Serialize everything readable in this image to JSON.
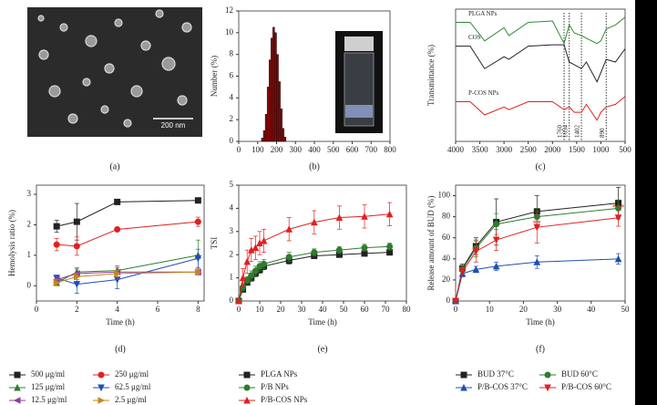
{
  "image_panel": {
    "scale_bar": "200 nm",
    "caption": "(a)"
  },
  "chart_data": [
    {
      "type": "histogram",
      "caption": "(b)",
      "ylabel": "Number (%)",
      "bins": [
        120,
        130,
        140,
        150,
        160,
        170,
        180,
        190,
        200,
        210,
        220,
        230,
        240,
        250
      ],
      "values": [
        0.3,
        1,
        2.5,
        5,
        7.5,
        9.5,
        10.5,
        10,
        8,
        5.5,
        3,
        1.2,
        0.4
      ],
      "color": "#8b0a0a",
      "xlim": [
        0,
        800
      ],
      "xticks": [
        0,
        100,
        200,
        300,
        400,
        500,
        600,
        700,
        800
      ],
      "ylim": [
        0,
        12
      ],
      "yticks": [
        0,
        2,
        4,
        6,
        8,
        10,
        12
      ]
    },
    {
      "type": "line",
      "caption": "(c)",
      "ylabel": "Transmittance (%)",
      "x": [
        4000,
        3700,
        3400,
        3000,
        2900,
        2500,
        2000,
        1760,
        1654,
        1550,
        1402,
        1300,
        1080,
        1000,
        890,
        700,
        500
      ],
      "series": [
        {
          "name": "PLGA NPs",
          "color": "#2e8b2e",
          "values": [
            90,
            90,
            76,
            86,
            80,
            90,
            91,
            74,
            88,
            82,
            80,
            78,
            74,
            76,
            85,
            88,
            94
          ]
        },
        {
          "name": "COS",
          "color": "#222222",
          "values": [
            72,
            72,
            55,
            64,
            62,
            72,
            73,
            73,
            60,
            58,
            55,
            60,
            45,
            52,
            62,
            60,
            70
          ]
        },
        {
          "name": "P-COS NPs",
          "color": "#e02020",
          "values": [
            30,
            30,
            20,
            26,
            24,
            30,
            30,
            24,
            26,
            22,
            22,
            28,
            16,
            22,
            26,
            28,
            34
          ]
        }
      ],
      "vlines": [
        1760,
        1654,
        1402,
        890
      ],
      "xlim": [
        4000,
        500
      ],
      "xticks": [
        4000,
        3500,
        3000,
        2500,
        2000,
        1500,
        1000,
        500
      ],
      "ylim": [
        0,
        100
      ]
    },
    {
      "type": "line",
      "caption": "(d)",
      "xlabel": "Time (h)",
      "ylabel": "Hemolysis ratio (%)",
      "x": [
        1,
        2,
        4,
        8
      ],
      "series": [
        {
          "name": "500 μg/ml",
          "color": "#222222",
          "marker": "square",
          "values": [
            1.95,
            2.1,
            2.75,
            2.8
          ],
          "errors": [
            0.2,
            0.6,
            0.05,
            0.05
          ]
        },
        {
          "name": "250 μg/ml",
          "color": "#e02020",
          "marker": "circle",
          "values": [
            1.35,
            1.3,
            1.85,
            2.1
          ],
          "errors": [
            0.2,
            0.3,
            0.05,
            0.15
          ]
        },
        {
          "name": "125 μg/ml",
          "color": "#2e7d2e",
          "marker": "up",
          "values": [
            0.1,
            0.45,
            0.5,
            1.0
          ],
          "errors": [
            0.1,
            0.1,
            0.1,
            0.5
          ]
        },
        {
          "name": "62.5 μg/ml",
          "color": "#1f4fb0",
          "marker": "down",
          "values": [
            0.25,
            0.05,
            0.2,
            0.9
          ],
          "errors": [
            0.1,
            0.3,
            0.3,
            0.3
          ]
        },
        {
          "name": "12.5 μg/ml",
          "color": "#8a3fa0",
          "marker": "left",
          "values": [
            0.2,
            0.4,
            0.45,
            0.45
          ],
          "errors": [
            0.1,
            0.2,
            0.2,
            0.1
          ]
        },
        {
          "name": "2.5 μg/ml",
          "color": "#c8861a",
          "marker": "right",
          "values": [
            0.1,
            0.3,
            0.4,
            0.45
          ],
          "errors": [
            0.1,
            0.1,
            0.1,
            0.05
          ]
        }
      ],
      "xlim": [
        0,
        8.3
      ],
      "xticks": [
        0,
        2,
        4,
        6,
        8
      ],
      "ylim": [
        -0.5,
        3.3
      ],
      "yticks": [
        0,
        1,
        2,
        3
      ]
    },
    {
      "type": "line",
      "caption": "(e)",
      "xlabel": "Time (h)",
      "ylabel": "TSI",
      "x": [
        0,
        2,
        4,
        6,
        8,
        10,
        12,
        24,
        36,
        48,
        60,
        72
      ],
      "series": [
        {
          "name": "PLGA NPs",
          "color": "#222222",
          "marker": "square",
          "values": [
            0,
            0.5,
            0.8,
            1.0,
            1.2,
            1.35,
            1.5,
            1.75,
            1.95,
            2.0,
            2.05,
            2.1
          ],
          "errors": [
            0,
            0.1,
            0.1,
            0.15,
            0.15,
            0.15,
            0.15,
            0.15,
            0.1,
            0.1,
            0.1,
            0.1
          ]
        },
        {
          "name": "P/B NPs",
          "color": "#2e7d2e",
          "marker": "circle",
          "values": [
            0,
            0.6,
            0.9,
            1.1,
            1.3,
            1.5,
            1.6,
            1.9,
            2.1,
            2.2,
            2.3,
            2.35
          ],
          "errors": [
            0,
            0.15,
            0.15,
            0.2,
            0.2,
            0.2,
            0.2,
            0.2,
            0.15,
            0.15,
            0.15,
            0.15
          ]
        },
        {
          "name": "P/B-COS NPs",
          "color": "#e02020",
          "marker": "up",
          "values": [
            0,
            1.0,
            1.7,
            2.2,
            2.3,
            2.5,
            2.6,
            3.1,
            3.4,
            3.6,
            3.65,
            3.75
          ],
          "errors": [
            0,
            0.4,
            0.5,
            0.5,
            0.5,
            0.5,
            0.5,
            0.5,
            0.5,
            0.5,
            0.5,
            0.5
          ]
        }
      ],
      "xlim": [
        0,
        80
      ],
      "xticks": [
        0,
        10,
        20,
        30,
        40,
        50,
        60,
        70,
        80
      ],
      "ylim": [
        0,
        5
      ],
      "yticks": [
        0,
        1,
        2,
        3,
        4,
        5
      ]
    },
    {
      "type": "line",
      "caption": "(f)",
      "xlabel": "Time (h)",
      "ylabel": "Release amount of BUD (%)",
      "x": [
        0,
        2,
        6,
        12,
        24,
        48
      ],
      "series": [
        {
          "name": "BUD 37°C",
          "color": "#222222",
          "marker": "square",
          "values": [
            0,
            31,
            52,
            75,
            85,
            93
          ],
          "errors": [
            0,
            4,
            8,
            22,
            15,
            15
          ]
        },
        {
          "name": "BUD 60°C",
          "color": "#2e7d2e",
          "marker": "circle",
          "values": [
            0,
            30,
            50,
            73,
            80,
            88
          ],
          "errors": [
            0,
            3,
            8,
            10,
            8,
            8
          ]
        },
        {
          "name": "P/B-COS 37°C",
          "color": "#1f4fb0",
          "marker": "up",
          "values": [
            0,
            26,
            30,
            33,
            37,
            40
          ],
          "errors": [
            0,
            3,
            3,
            4,
            6,
            5
          ]
        },
        {
          "name": "P/B-COS 60°C",
          "color": "#e02020",
          "marker": "down",
          "values": [
            0,
            28,
            47,
            58,
            70,
            79
          ],
          "errors": [
            0,
            3,
            10,
            10,
            15,
            8
          ]
        }
      ],
      "annotations": [
        {
          "text": "**",
          "x": 24,
          "y": 73
        },
        {
          "text": "***",
          "x": 48,
          "y": 88
        }
      ],
      "xlim": [
        0,
        50
      ],
      "xticks": [
        0,
        10,
        20,
        30,
        40,
        50
      ],
      "ylim": [
        0,
        110
      ],
      "yticks": [
        0,
        20,
        40,
        60,
        80,
        100
      ]
    }
  ]
}
